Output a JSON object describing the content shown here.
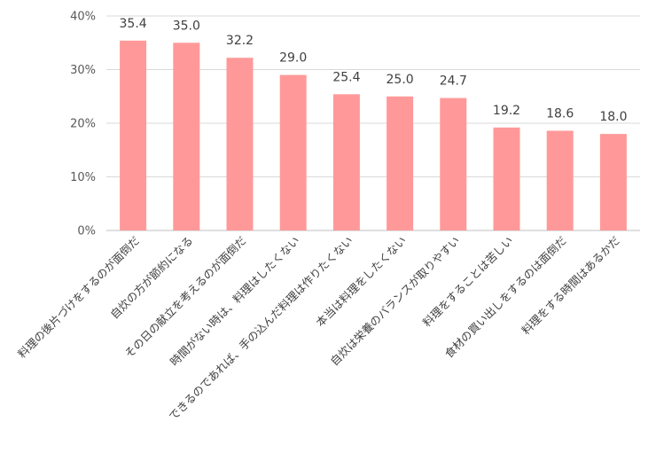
{
  "chart_data": {
    "type": "bar",
    "categories": [
      "料理の後片づけをするのが面倒だ",
      "自炊の方が節約になる",
      "その日の献立を考えるのが面倒だ",
      "時間がない時は、料理はしたくない",
      "できるのであれば、手の込んだ料理は作りたくない",
      "本当は料理をしたくない",
      "自炊は栄養のバランスが取りやすい",
      "料理をすることは苦しい",
      "食材の買い出しをするのは面倒だ",
      "料理をする時間はあるかだ"
    ],
    "values": [
      35.4,
      35.0,
      32.2,
      29.0,
      25.4,
      25.0,
      24.7,
      19.2,
      18.6,
      18.0
    ],
    "value_labels": [
      "35.4",
      "35.0",
      "32.2",
      "29.0",
      "25.4",
      "25.0",
      "24.7",
      "19.2",
      "18.6",
      "18.0"
    ],
    "y_ticks": [
      0,
      10,
      20,
      30,
      40
    ],
    "y_tick_labels": [
      "0%",
      "10%",
      "20%",
      "30%",
      "40%"
    ],
    "ylim": [
      0,
      40
    ],
    "grid": true,
    "legend": "none",
    "title": "",
    "xlabel": "",
    "ylabel": "",
    "colors": {
      "bar": "#ff9999",
      "grid": "#d9d9d9",
      "axis": "#bfbfbf"
    }
  }
}
